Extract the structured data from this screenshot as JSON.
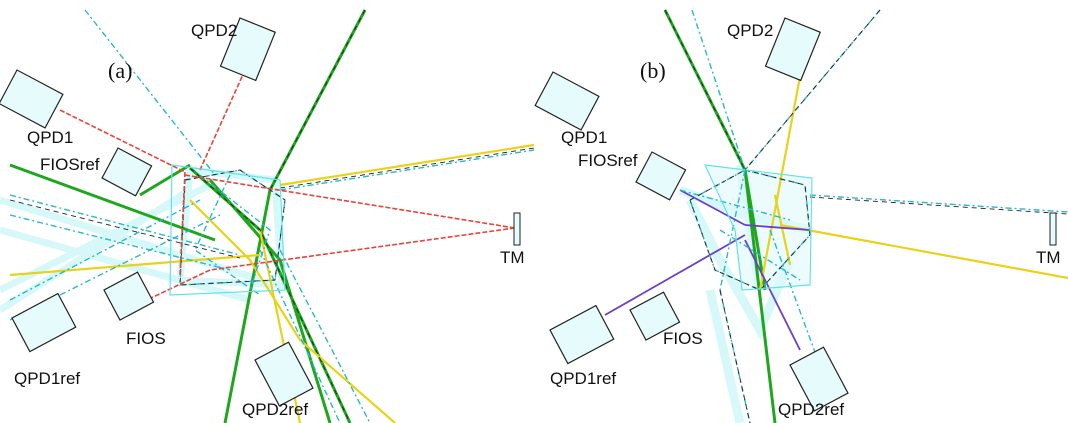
{
  "panels": [
    {
      "id": "a",
      "label": "(a)",
      "components": {
        "qpd1": "QPD1",
        "qpd2": "QPD2",
        "fiosref": "FIOSref",
        "fios": "FIOS",
        "qpd1ref": "QPD1ref",
        "qpd2ref": "QPD2ref",
        "tm": "TM"
      }
    },
    {
      "id": "b",
      "label": "(b)",
      "components": {
        "qpd1": "QPD1",
        "qpd2": "QPD2",
        "fiosref": "FIOSref",
        "fios": "FIOS",
        "qpd1ref": "QPD1ref",
        "qpd2ref": "QPD2ref",
        "tm": "TM"
      }
    }
  ],
  "colors": {
    "beam_red": "#e8443a",
    "beam_green": "#1fa61f",
    "beam_yellow": "#e8d21a",
    "beam_cyan": "#2ab7c9",
    "beam_purple": "#6a3fc9",
    "glow": "#9feff2",
    "detector_fill": "#e6fbfb"
  }
}
